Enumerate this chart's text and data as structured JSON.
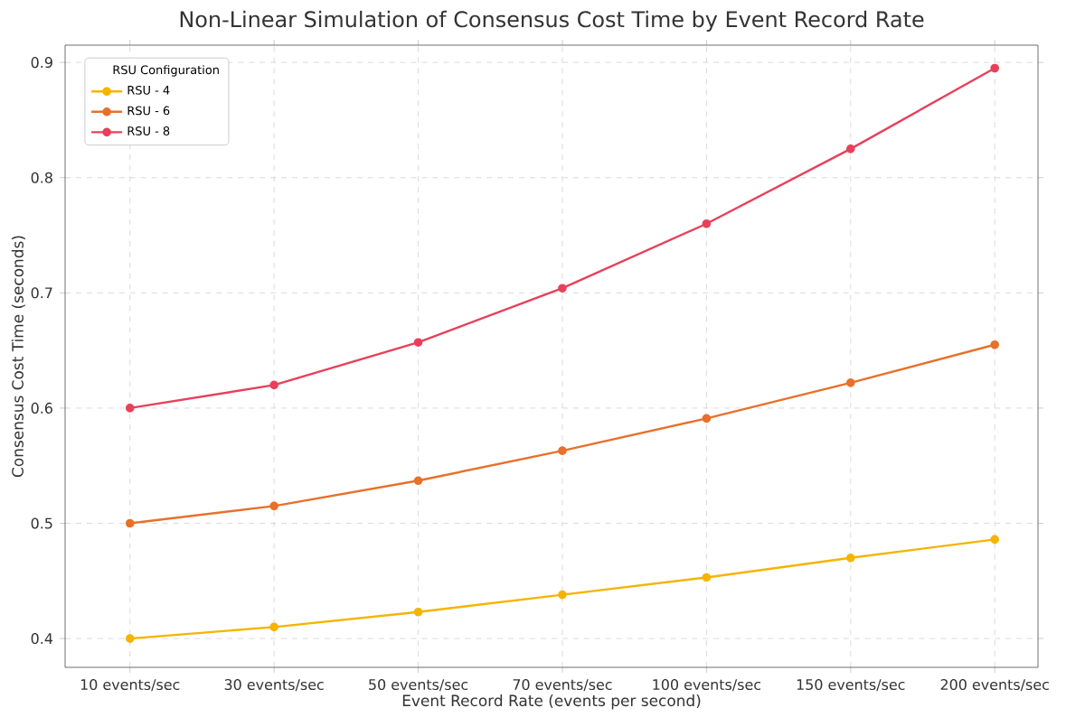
{
  "chart_data": {
    "type": "line",
    "title": "Non-Linear Simulation of Consensus Cost Time by Event Record Rate",
    "xlabel": "Event Record Rate (events per second)",
    "ylabel": "Consensus Cost Time (seconds)",
    "legend_title": "RSU Configuration",
    "categories": [
      "10 events/sec",
      "30 events/sec",
      "50 events/sec",
      "70 events/sec",
      "100 events/sec",
      "150 events/sec",
      "200 events/sec"
    ],
    "series": [
      {
        "name": "RSU - 4",
        "color": "#f5b400",
        "values": [
          0.4,
          0.41,
          0.423,
          0.438,
          0.453,
          0.47,
          0.486
        ]
      },
      {
        "name": "RSU - 6",
        "color": "#e8702a",
        "values": [
          0.5,
          0.515,
          0.537,
          0.563,
          0.591,
          0.622,
          0.655
        ]
      },
      {
        "name": "RSU - 8",
        "color": "#e8405a",
        "values": [
          0.6,
          0.62,
          0.657,
          0.704,
          0.76,
          0.825,
          0.895
        ]
      }
    ],
    "ylim": [
      0.375,
      0.915
    ],
    "yticks": [
      0.4,
      0.5,
      0.6,
      0.7,
      0.8,
      0.9
    ],
    "grid": true,
    "legend": "top left",
    "marker": "circle",
    "line_style": "solid"
  }
}
